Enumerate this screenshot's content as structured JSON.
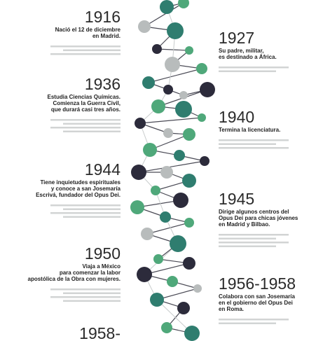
{
  "events": [
    {
      "year": "1916",
      "lines": [
        "Nació el 12 de diciembre",
        "en Madrid."
      ]
    },
    {
      "year": "1927",
      "lines": [
        "Su padre, militar,",
        "es destinado a África."
      ]
    },
    {
      "year": "1936",
      "lines": [
        "Estudia Ciencias Químicas.",
        "Comienza la Guerra Civil,",
        "que durará casi tres años."
      ]
    },
    {
      "year": "1940",
      "lines": [
        "Termina la licenciatura."
      ]
    },
    {
      "year": "1944",
      "lines": [
        "Tiene inquietudes espirituales",
        "y conoce a san Josemaría",
        "Escrivá, fundador del Opus Dei."
      ]
    },
    {
      "year": "1945",
      "lines": [
        "Dirige algunos centros del",
        "Opus Dei para chicas jóvenes",
        "en Madrid y Bilbao."
      ]
    },
    {
      "year": "1950",
      "lines": [
        "Viaja a México",
        "para comenzar la labor",
        "apostólica de la Obra con mujeres."
      ]
    },
    {
      "year": "1956-1958",
      "lines": [
        "Colabora con san Josemaría",
        "en el gobierno del Opus Dei",
        "en Roma."
      ]
    },
    {
      "year": "1958-",
      "lines": []
    }
  ]
}
